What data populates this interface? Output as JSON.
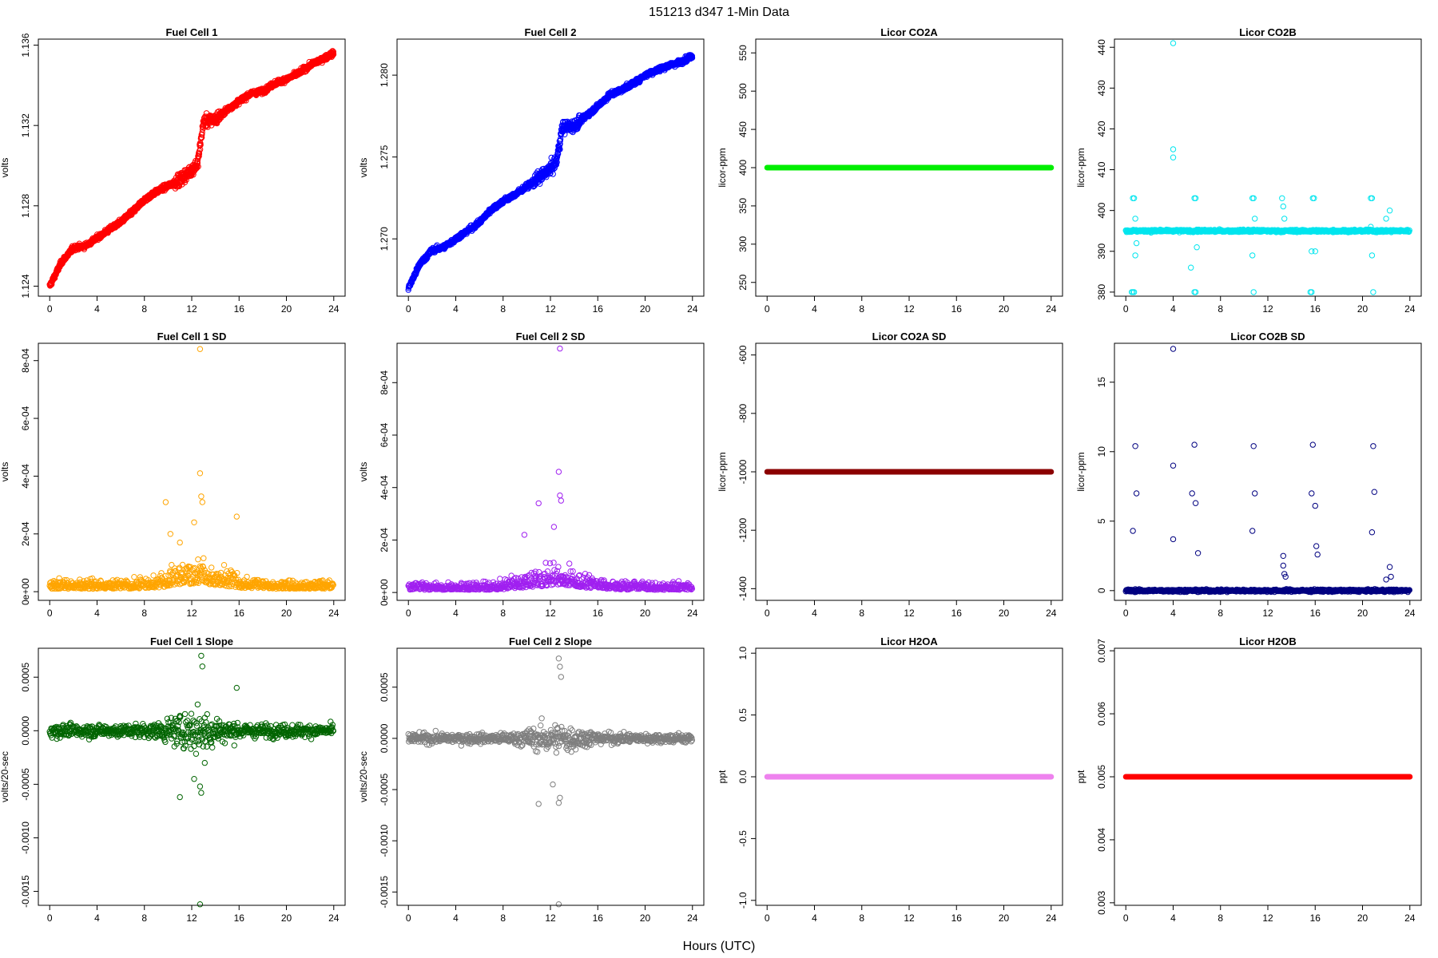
{
  "figure": {
    "title": "151213   d347   1-Min Data",
    "xlabel": "Hours (UTC)"
  },
  "chart_data": [
    {
      "type": "scatter",
      "title": "Fuel Cell 1",
      "xlabel": "",
      "ylabel": "volts",
      "color": "#ff0000",
      "xlim": [
        0,
        24
      ],
      "ylim": [
        1.1235,
        1.1363
      ],
      "xticks": [
        0,
        4,
        8,
        12,
        16,
        20,
        24
      ],
      "xtick_labels": [
        "0",
        "4",
        "8",
        "12",
        "16",
        "20",
        "24"
      ],
      "yticks": [
        1.124,
        1.128,
        1.132,
        1.136
      ],
      "ytick_labels": [
        "1.124",
        "1.128",
        "1.132",
        "1.136"
      ],
      "pattern": "trend",
      "series": [
        {
          "x": [
            0,
            1,
            2,
            3,
            4,
            5,
            6,
            7,
            8,
            9,
            10,
            11,
            12,
            12.5,
            13,
            14,
            15,
            16,
            17,
            18,
            19,
            20,
            21,
            22,
            23,
            24
          ],
          "y": [
            1.124,
            1.1252,
            1.1259,
            1.126,
            1.1264,
            1.1268,
            1.1272,
            1.1277,
            1.1283,
            1.1287,
            1.129,
            1.1293,
            1.1298,
            1.1301,
            1.1322,
            1.1323,
            1.1328,
            1.1332,
            1.1336,
            1.1337,
            1.1341,
            1.1343,
            1.1346,
            1.135,
            1.1353,
            1.1356
          ]
        }
      ]
    },
    {
      "type": "scatter",
      "title": "Fuel Cell 2",
      "xlabel": "",
      "ylabel": "volts",
      "color": "#0000ff",
      "xlim": [
        0,
        24
      ],
      "ylim": [
        1.2665,
        1.2822
      ],
      "xticks": [
        0,
        4,
        8,
        12,
        16,
        20,
        24
      ],
      "xtick_labels": [
        "0",
        "4",
        "8",
        "12",
        "16",
        "20",
        "24"
      ],
      "yticks": [
        1.27,
        1.275,
        1.28
      ],
      "ytick_labels": [
        "1.270",
        "1.275",
        "1.280"
      ],
      "pattern": "trend",
      "series": [
        {
          "x": [
            0,
            1,
            2,
            3,
            4,
            5,
            6,
            7,
            8,
            9,
            10,
            11,
            12,
            12.5,
            13,
            14,
            15,
            16,
            17,
            18,
            19,
            20,
            21,
            22,
            23,
            24
          ],
          "y": [
            1.267,
            1.2685,
            1.2693,
            1.2695,
            1.27,
            1.2705,
            1.271,
            1.2718,
            1.2723,
            1.2727,
            1.2732,
            1.2737,
            1.2743,
            1.2747,
            1.2768,
            1.2769,
            1.2775,
            1.2781,
            1.2788,
            1.2791,
            1.2795,
            1.28,
            1.2803,
            1.2806,
            1.2808,
            1.2812
          ]
        }
      ]
    },
    {
      "type": "scatter",
      "title": "Licor CO2A",
      "xlabel": "",
      "ylabel": "licor-ppm",
      "color": "#00ee00",
      "xlim": [
        0,
        24
      ],
      "ylim": [
        232,
        568
      ],
      "xticks": [
        0,
        4,
        8,
        12,
        16,
        20,
        24
      ],
      "xtick_labels": [
        "0",
        "4",
        "8",
        "12",
        "16",
        "20",
        "24"
      ],
      "yticks": [
        250,
        300,
        350,
        400,
        450,
        500,
        550
      ],
      "ytick_labels": [
        "250",
        "300",
        "350",
        "400",
        "450",
        "500",
        "550"
      ],
      "pattern": "flat",
      "series": [
        {
          "x": [
            0,
            24
          ],
          "y": [
            400,
            400
          ]
        }
      ]
    },
    {
      "type": "scatter",
      "title": "Licor CO2B",
      "xlabel": "",
      "ylabel": "licor-ppm",
      "color": "#00e5ee",
      "xlim": [
        0,
        24
      ],
      "ylim": [
        379,
        442
      ],
      "xticks": [
        0,
        4,
        8,
        12,
        16,
        20,
        24
      ],
      "xtick_labels": [
        "0",
        "4",
        "8",
        "12",
        "16",
        "20",
        "24"
      ],
      "yticks": [
        380,
        390,
        400,
        410,
        420,
        430,
        440
      ],
      "ytick_labels": [
        "380",
        "390",
        "400",
        "410",
        "420",
        "430",
        "440"
      ],
      "pattern": "baseline_spikes",
      "baseline": 395,
      "series": [
        {
          "x": [
            0.5,
            0.6,
            0.7,
            0.8,
            0.9,
            0.6,
            0.7,
            0.8,
            4.0,
            4.0,
            4.0,
            5.8,
            5.9,
            5.8,
            5.9,
            5.5,
            6.0,
            10.7,
            10.8,
            10.8,
            10.7,
            10.9,
            13.2,
            13.3,
            13.4,
            15.6,
            15.7,
            15.8,
            15.9,
            16.0,
            15.7,
            20.7,
            20.8,
            20.9,
            20.8,
            20.7,
            22.0,
            22.3
          ],
          "y": [
            380,
            380,
            380,
            389,
            392,
            403,
            403,
            398,
            441,
            415,
            413,
            403,
            403,
            380,
            380,
            386,
            391,
            403,
            403,
            380,
            389,
            398,
            403,
            401,
            398,
            380,
            380,
            403,
            403,
            390,
            390,
            403,
            403,
            380,
            389,
            396,
            398,
            400
          ]
        }
      ]
    },
    {
      "type": "scatter",
      "title": "Fuel Cell 1 SD",
      "xlabel": "",
      "ylabel": "volts",
      "color": "#ffa500",
      "xlim": [
        0,
        24
      ],
      "ylim": [
        -3e-05,
        0.00086
      ],
      "xticks": [
        0,
        4,
        8,
        12,
        16,
        20,
        24
      ],
      "xtick_labels": [
        "0",
        "4",
        "8",
        "12",
        "16",
        "20",
        "24"
      ],
      "yticks": [
        0,
        0.0002,
        0.0004,
        0.0006,
        0.0008
      ],
      "ytick_labels": [
        "0e+00",
        "2e-04",
        "4e-04",
        "6e-04",
        "8e-04"
      ],
      "pattern": "noise_pos",
      "noise_scale": 4e-05,
      "noise_peak": 12.5,
      "series": [
        {
          "x": [
            12.7,
            12.7,
            12.8,
            12.9,
            10.2,
            9.8,
            11.0,
            12.2,
            15.8
          ],
          "y": [
            0.00084,
            0.00041,
            0.00033,
            0.00031,
            0.0002,
            0.00031,
            0.00017,
            0.00024,
            0.00026
          ]
        }
      ]
    },
    {
      "type": "scatter",
      "title": "Fuel Cell 2 SD",
      "xlabel": "",
      "ylabel": "volts",
      "color": "#a020f0",
      "xlim": [
        0,
        24
      ],
      "ylim": [
        -3e-05,
        0.00095
      ],
      "xticks": [
        0,
        4,
        8,
        12,
        16,
        20,
        24
      ],
      "xtick_labels": [
        "0",
        "4",
        "8",
        "12",
        "16",
        "20",
        "24"
      ],
      "yticks": [
        0,
        0.0002,
        0.0004,
        0.0006,
        0.0008
      ],
      "ytick_labels": [
        "0e+00",
        "2e-04",
        "4e-04",
        "6e-04",
        "8e-04"
      ],
      "pattern": "noise_pos",
      "noise_scale": 4e-05,
      "noise_peak": 12.5,
      "series": [
        {
          "x": [
            12.8,
            12.7,
            12.8,
            12.9,
            11.0,
            9.8,
            12.3
          ],
          "y": [
            0.00093,
            0.00046,
            0.00037,
            0.00035,
            0.00034,
            0.00022,
            0.00025
          ]
        }
      ]
    },
    {
      "type": "scatter",
      "title": "Licor CO2A SD",
      "xlabel": "",
      "ylabel": "licor-ppm",
      "color": "#8b0000",
      "xlim": [
        0,
        24
      ],
      "ylim": [
        -1440,
        -560
      ],
      "xticks": [
        0,
        4,
        8,
        12,
        16,
        20,
        24
      ],
      "xtick_labels": [
        "0",
        "4",
        "8",
        "12",
        "16",
        "20",
        "24"
      ],
      "yticks": [
        -1400,
        -1200,
        -1000,
        -800,
        -600
      ],
      "ytick_labels": [
        "-1400",
        "-1200",
        "-1000",
        "-800",
        "-600"
      ],
      "pattern": "flat",
      "series": [
        {
          "x": [
            0,
            24
          ],
          "y": [
            -1000,
            -1000
          ]
        }
      ]
    },
    {
      "type": "scatter",
      "title": "Licor CO2B SD",
      "xlabel": "",
      "ylabel": "licor-ppm",
      "color": "#000080",
      "xlim": [
        0,
        24
      ],
      "ylim": [
        -0.7,
        17.8
      ],
      "xticks": [
        0,
        4,
        8,
        12,
        16,
        20,
        24
      ],
      "xtick_labels": [
        "0",
        "4",
        "8",
        "12",
        "16",
        "20",
        "24"
      ],
      "yticks": [
        0,
        5,
        10,
        15
      ],
      "ytick_labels": [
        "0",
        "5",
        "10",
        "15"
      ],
      "pattern": "baseline_spikes",
      "baseline": 0,
      "series": [
        {
          "x": [
            0.6,
            0.8,
            0.9,
            4.0,
            4.0,
            4.0,
            5.6,
            5.8,
            5.9,
            6.1,
            10.7,
            10.8,
            10.9,
            13.3,
            13.3,
            13.4,
            13.5,
            15.7,
            15.8,
            16.0,
            16.1,
            16.2,
            20.8,
            20.9,
            21.0,
            22.3,
            22.4,
            22.0
          ],
          "y": [
            4.3,
            10.4,
            7.0,
            17.4,
            9.0,
            3.7,
            7.0,
            10.5,
            6.3,
            2.7,
            4.3,
            10.4,
            7.0,
            2.5,
            1.8,
            1.2,
            1.0,
            7.0,
            10.5,
            6.1,
            3.2,
            2.6,
            4.2,
            10.4,
            7.1,
            1.7,
            1.0,
            0.8
          ]
        }
      ]
    },
    {
      "type": "scatter",
      "title": "Fuel Cell 1 Slope",
      "xlabel": "",
      "ylabel": "volts/20-sec",
      "color": "#006400",
      "xlim": [
        0,
        24
      ],
      "ylim": [
        -0.00163,
        0.00077
      ],
      "xticks": [
        0,
        4,
        8,
        12,
        16,
        20,
        24
      ],
      "xtick_labels": [
        "0",
        "4",
        "8",
        "12",
        "16",
        "20",
        "24"
      ],
      "yticks": [
        -0.0015,
        -0.001,
        -0.0005,
        0,
        0.0005
      ],
      "ytick_labels": [
        "-0.0015",
        "-0.0010",
        "-0.0005",
        "0.0000",
        "0.0005"
      ],
      "pattern": "noise_sym",
      "noise_scale": 5e-05,
      "noise_peak": 12.5,
      "series": [
        {
          "x": [
            12.7,
            12.7,
            12.8,
            12.8,
            12.7,
            11.0,
            12.9,
            13.1,
            15.8,
            12.2
          ],
          "y": [
            -0.00162,
            0.0008,
            0.0007,
            -0.00058,
            -0.00052,
            -0.00062,
            0.0006,
            -0.0003,
            0.0004,
            -0.00045
          ]
        }
      ]
    },
    {
      "type": "scatter",
      "title": "Fuel Cell 2 Slope",
      "xlabel": "",
      "ylabel": "volts/20-sec",
      "color": "#7f7f7f",
      "xlim": [
        0,
        24
      ],
      "ylim": [
        -0.00163,
        0.00088
      ],
      "xticks": [
        0,
        4,
        8,
        12,
        16,
        20,
        24
      ],
      "xtick_labels": [
        "0",
        "4",
        "8",
        "12",
        "16",
        "20",
        "24"
      ],
      "yticks": [
        -0.0015,
        -0.001,
        -0.0005,
        0,
        0.0005
      ],
      "ytick_labels": [
        "-0.0015",
        "-0.0010",
        "-0.0005",
        "0.0000",
        "0.0005"
      ],
      "pattern": "noise_sym",
      "noise_scale": 4e-05,
      "noise_peak": 12.5,
      "series": [
        {
          "x": [
            12.7,
            12.7,
            12.8,
            12.8,
            12.7,
            11.0,
            12.9,
            12.2
          ],
          "y": [
            -0.00162,
            0.00078,
            0.0007,
            -0.00058,
            -0.00063,
            -0.00064,
            0.0006,
            -0.00045
          ]
        }
      ]
    },
    {
      "type": "scatter",
      "title": "Licor H2OA",
      "xlabel": "",
      "ylabel": "ppt",
      "color": "#ee82ee",
      "xlim": [
        0,
        24
      ],
      "ylim": [
        -1.04,
        1.04
      ],
      "xticks": [
        0,
        4,
        8,
        12,
        16,
        20,
        24
      ],
      "xtick_labels": [
        "0",
        "4",
        "8",
        "12",
        "16",
        "20",
        "24"
      ],
      "yticks": [
        -1.0,
        -0.5,
        0.0,
        0.5,
        1.0
      ],
      "ytick_labels": [
        "-1.0",
        "-0.5",
        "0.0",
        "0.5",
        "1.0"
      ],
      "pattern": "flat",
      "series": [
        {
          "x": [
            0,
            24
          ],
          "y": [
            0,
            0
          ]
        }
      ]
    },
    {
      "type": "scatter",
      "title": "Licor H2OB",
      "xlabel": "",
      "ylabel": "ppt",
      "color": "#ff0000",
      "xlim": [
        0,
        24
      ],
      "ylim": [
        0.00296,
        0.00704
      ],
      "xticks": [
        0,
        4,
        8,
        12,
        16,
        20,
        24
      ],
      "xtick_labels": [
        "0",
        "4",
        "8",
        "12",
        "16",
        "20",
        "24"
      ],
      "yticks": [
        0.003,
        0.004,
        0.005,
        0.006,
        0.007
      ],
      "ytick_labels": [
        "0.003",
        "0.004",
        "0.005",
        "0.006",
        "0.007"
      ],
      "pattern": "flat",
      "series": [
        {
          "x": [
            0,
            24
          ],
          "y": [
            0.005,
            0.005
          ]
        }
      ]
    }
  ]
}
